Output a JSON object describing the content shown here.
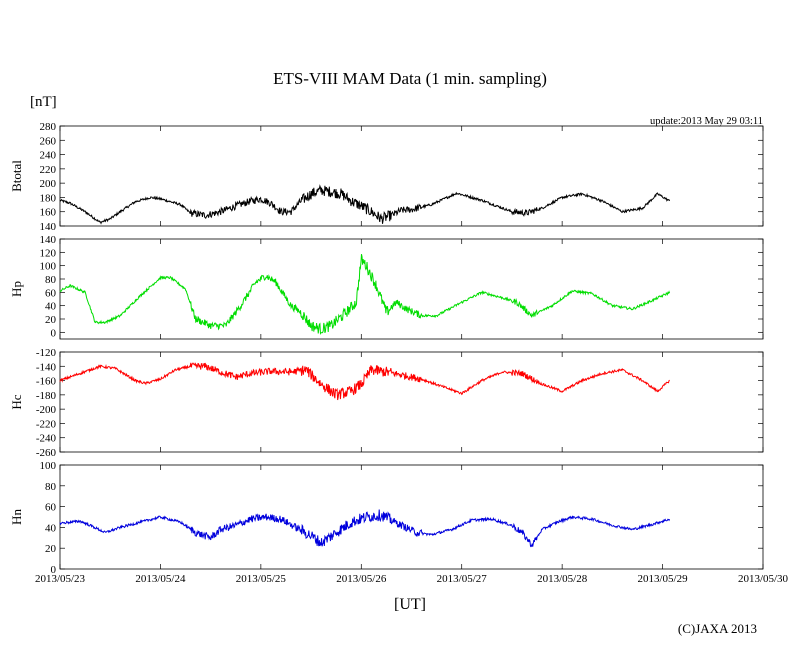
{
  "chart_data": {
    "type": "line",
    "title": "ETS-VIII MAM Data (1 min. sampling)",
    "unit_label": "[nT]",
    "update_text": "update:2013 May 29 03:11",
    "xlabel": "[UT]",
    "copyright": "(C)JAXA 2013",
    "x_range": [
      0,
      7
    ],
    "x_ticks": [
      "2013/05/23",
      "2013/05/24",
      "2013/05/25",
      "2013/05/26",
      "2013/05/27",
      "2013/05/28",
      "2013/05/29",
      "2013/05/30"
    ],
    "data_end_day": 6.07,
    "panels": [
      {
        "name": "Btotal",
        "ylabel": "Btotal",
        "color": "#000000",
        "ylim": [
          140,
          280
        ],
        "yticks": [
          140,
          160,
          180,
          200,
          220,
          240,
          260,
          280
        ],
        "series": {
          "x": [
            0,
            0.1,
            0.25,
            0.4,
            0.5,
            0.6,
            0.75,
            0.9,
            1.0,
            1.2,
            1.3,
            1.45,
            1.6,
            1.75,
            1.9,
            2.0,
            2.1,
            2.2,
            2.3,
            2.4,
            2.5,
            2.6,
            2.7,
            2.8,
            2.9,
            3.0,
            3.1,
            3.2,
            3.3,
            3.4,
            3.5,
            3.7,
            3.95,
            4.2,
            4.35,
            4.5,
            4.65,
            4.8,
            5.0,
            5.2,
            5.4,
            5.6,
            5.8,
            5.95,
            6.07
          ],
          "y": [
            176,
            172,
            160,
            145,
            150,
            160,
            174,
            180,
            178,
            170,
            158,
            155,
            160,
            168,
            175,
            178,
            172,
            160,
            160,
            175,
            185,
            190,
            188,
            185,
            175,
            168,
            160,
            150,
            155,
            162,
            163,
            170,
            186,
            176,
            168,
            160,
            158,
            165,
            180,
            185,
            175,
            160,
            165,
            185,
            175
          ]
        }
      },
      {
        "name": "Hp",
        "ylabel": "Hp",
        "color": "#00dd00",
        "ylim": [
          -10,
          140
        ],
        "yticks": [
          0,
          20,
          40,
          60,
          80,
          100,
          120,
          140
        ],
        "series": {
          "x": [
            0,
            0.1,
            0.25,
            0.35,
            0.45,
            0.6,
            0.8,
            1.0,
            1.1,
            1.25,
            1.35,
            1.5,
            1.65,
            1.8,
            1.95,
            2.05,
            2.15,
            2.3,
            2.4,
            2.5,
            2.6,
            2.7,
            2.85,
            2.95,
            3.0,
            3.05,
            3.15,
            3.25,
            3.35,
            3.45,
            3.6,
            3.75,
            4.0,
            4.2,
            4.4,
            4.55,
            4.7,
            4.9,
            5.1,
            5.3,
            5.5,
            5.7,
            5.9,
            6.07
          ],
          "y": [
            62,
            70,
            60,
            15,
            15,
            25,
            55,
            82,
            82,
            65,
            20,
            10,
            10,
            40,
            75,
            85,
            75,
            40,
            30,
            10,
            5,
            10,
            30,
            45,
            110,
            100,
            70,
            30,
            45,
            35,
            25,
            25,
            45,
            60,
            52,
            45,
            25,
            40,
            62,
            58,
            40,
            35,
            48,
            60
          ]
        }
      },
      {
        "name": "Hc",
        "ylabel": "Hc",
        "color": "#ff0000",
        "ylim": [
          -260,
          -120
        ],
        "yticks": [
          -260,
          -240,
          -220,
          -200,
          -180,
          -160,
          -140,
          -120
        ],
        "series": {
          "x": [
            0,
            0.2,
            0.4,
            0.55,
            0.75,
            0.85,
            1.0,
            1.15,
            1.3,
            1.45,
            1.6,
            1.75,
            1.9,
            2.1,
            2.3,
            2.45,
            2.6,
            2.75,
            2.9,
            3.0,
            3.1,
            3.25,
            3.4,
            3.6,
            3.8,
            4.0,
            4.2,
            4.4,
            4.6,
            4.8,
            5.0,
            5.2,
            5.4,
            5.6,
            5.8,
            5.95,
            6.07
          ],
          "y": [
            -160,
            -150,
            -140,
            -143,
            -160,
            -164,
            -158,
            -145,
            -140,
            -140,
            -148,
            -155,
            -150,
            -147,
            -148,
            -145,
            -165,
            -180,
            -175,
            -165,
            -145,
            -148,
            -152,
            -158,
            -168,
            -178,
            -160,
            -148,
            -150,
            -165,
            -175,
            -160,
            -150,
            -145,
            -160,
            -175,
            -160
          ]
        }
      },
      {
        "name": "Hn",
        "ylabel": "Hn",
        "color": "#0000dd",
        "ylim": [
          0,
          100
        ],
        "yticks": [
          0,
          20,
          40,
          60,
          80,
          100
        ],
        "series": {
          "x": [
            0,
            0.2,
            0.3,
            0.45,
            0.6,
            0.8,
            1.0,
            1.2,
            1.35,
            1.5,
            1.6,
            1.75,
            1.9,
            2.05,
            2.2,
            2.35,
            2.5,
            2.6,
            2.75,
            2.9,
            3.05,
            3.2,
            3.4,
            3.55,
            3.7,
            3.9,
            4.1,
            4.3,
            4.5,
            4.6,
            4.7,
            4.8,
            4.95,
            5.1,
            5.3,
            5.5,
            5.7,
            5.9,
            6.07
          ],
          "y": [
            44,
            46,
            42,
            35,
            40,
            45,
            50,
            45,
            35,
            30,
            38,
            42,
            48,
            50,
            48,
            40,
            32,
            25,
            35,
            45,
            50,
            52,
            42,
            35,
            33,
            38,
            47,
            48,
            42,
            35,
            23,
            38,
            45,
            50,
            48,
            42,
            38,
            43,
            48
          ]
        }
      }
    ]
  }
}
